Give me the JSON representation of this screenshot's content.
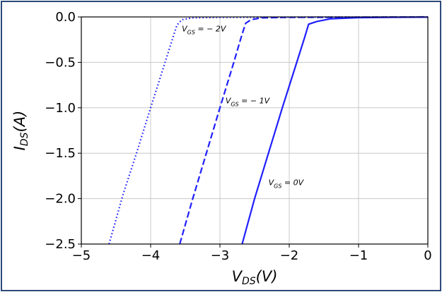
{
  "chart_data": {
    "type": "line",
    "xlim": [
      -5,
      0
    ],
    "ylim": [
      -2.5,
      0.0
    ],
    "xticks": [
      -5,
      -4,
      -3,
      -2,
      -1,
      0
    ],
    "yticks": [
      0.0,
      -0.5,
      -1.0,
      -1.5,
      -2.0,
      -2.5
    ],
    "xtick_labels": [
      "−5",
      "−4",
      "−3",
      "−2",
      "−1",
      "0"
    ],
    "ytick_labels": [
      "0.0",
      "−0.5",
      "−1.0",
      "−1.5",
      "−2.0",
      "−2.5"
    ],
    "xlabel": {
      "main": "V",
      "sub": "DS",
      "rest": "(V)"
    },
    "ylabel": {
      "main": "I",
      "sub": "DS",
      "rest": "(A)"
    },
    "grid": true,
    "series_color": "#1f1fff",
    "series": [
      {
        "style": "dotted",
        "label": {
          "main": "V",
          "sub": "GS",
          "rest": " = − 2V",
          "at": [
            -3.55,
            -0.16
          ]
        },
        "points": [
          [
            -4.6,
            -2.5
          ],
          [
            -4.4,
            -1.96
          ],
          [
            -4.2,
            -1.49
          ],
          [
            -4.0,
            -1.0
          ],
          [
            -3.8,
            -0.52
          ],
          [
            -3.68,
            -0.23
          ],
          [
            -3.62,
            -0.09
          ],
          [
            -3.55,
            -0.03
          ],
          [
            -3.4,
            -0.01
          ],
          [
            -3.0,
            -0.005
          ],
          [
            -2.0,
            -0.003
          ],
          [
            0.0,
            0.0
          ]
        ]
      },
      {
        "style": "dashed",
        "label": {
          "main": "V",
          "sub": "GS",
          "rest": " = − 1V",
          "at": [
            -2.92,
            -0.95
          ]
        },
        "points": [
          [
            -3.58,
            -2.5
          ],
          [
            -3.4,
            -2.02
          ],
          [
            -3.2,
            -1.51
          ],
          [
            -3.0,
            -1.0
          ],
          [
            -2.8,
            -0.5
          ],
          [
            -2.7,
            -0.24
          ],
          [
            -2.63,
            -0.07
          ],
          [
            -2.55,
            -0.03
          ],
          [
            -2.4,
            -0.01
          ],
          [
            -2.0,
            -0.005
          ],
          [
            -1.0,
            -0.003
          ],
          [
            0.0,
            0.0
          ]
        ]
      },
      {
        "style": "solid",
        "label": {
          "main": "V",
          "sub": "GS",
          "rest": " = 0V",
          "at": [
            -2.3,
            -1.85
          ]
        },
        "points": [
          [
            -2.68,
            -2.5
          ],
          [
            -2.5,
            -2.0
          ],
          [
            -2.3,
            -1.5
          ],
          [
            -2.1,
            -1.0
          ],
          [
            -1.9,
            -0.52
          ],
          [
            -1.78,
            -0.23
          ],
          [
            -1.72,
            -0.08
          ],
          [
            -1.6,
            -0.05
          ],
          [
            -1.4,
            -0.02
          ],
          [
            -1.0,
            -0.008
          ],
          [
            -0.5,
            -0.004
          ],
          [
            0.0,
            -0.002
          ]
        ]
      }
    ]
  }
}
